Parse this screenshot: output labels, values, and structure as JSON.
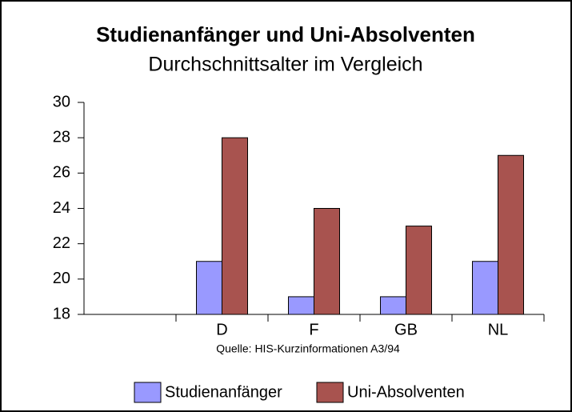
{
  "chart_data": {
    "type": "bar",
    "title": "Studienanfänger und Uni-Absolventen",
    "subtitle": "Durchschnittsalter im Vergleich",
    "annotation": "Quelle: HIS-Kurzinformationen A3/94",
    "categories": [
      null,
      "D",
      "F",
      "GB",
      "NL"
    ],
    "series": [
      {
        "name": "Studienanfänger",
        "color": "#9999ff",
        "values": [
          null,
          21,
          19,
          19,
          21
        ]
      },
      {
        "name": "Uni-Absolventen",
        "color": "#a8534f",
        "values": [
          null,
          28,
          24,
          23,
          27
        ]
      }
    ],
    "ylim": [
      18,
      30
    ],
    "yticks": [
      18,
      20,
      22,
      24,
      26,
      28,
      30
    ],
    "grid": false,
    "legend": "bottom"
  }
}
